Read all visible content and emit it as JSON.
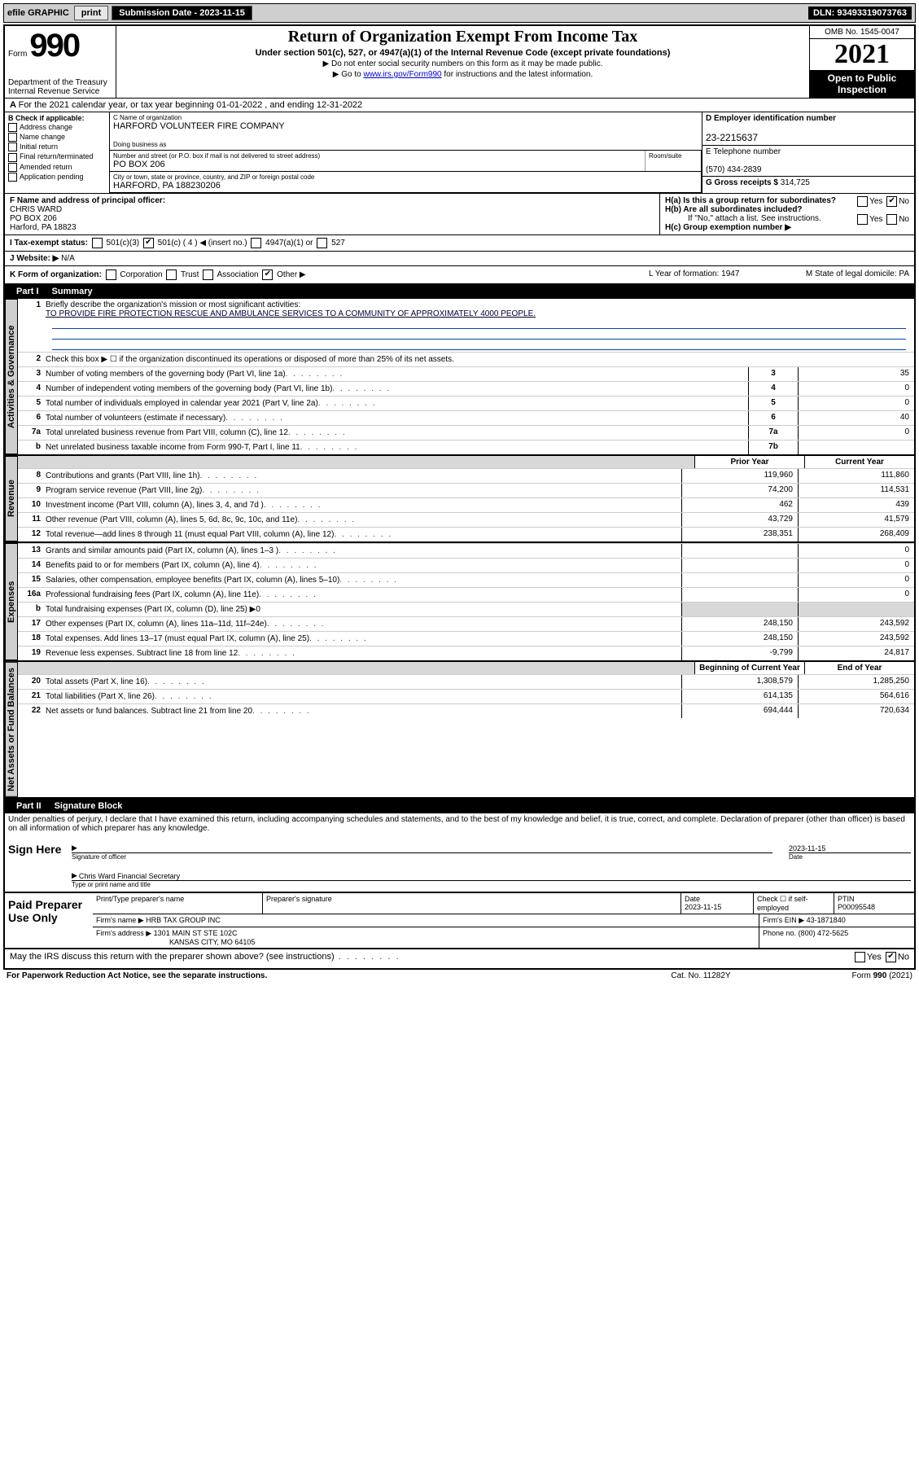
{
  "topbar": {
    "efile_label": "efile GRAPHIC",
    "print_btn": "print",
    "submission_label": "Submission Date - 2023-11-15",
    "dln": "DLN: 93493319073763"
  },
  "header": {
    "form_word": "Form",
    "form_no": "990",
    "title": "Return of Organization Exempt From Income Tax",
    "subtitle": "Under section 501(c), 527, or 4947(a)(1) of the Internal Revenue Code (except private foundations)",
    "note1": "▶ Do not enter social security numbers on this form as it may be made public.",
    "note2_pre": "▶ Go to ",
    "note2_link": "www.irs.gov/Form990",
    "note2_post": " for instructions and the latest information.",
    "dept": "Department of the Treasury\nInternal Revenue Service",
    "omb": "OMB No. 1545-0047",
    "year": "2021",
    "open": "Open to Public Inspection"
  },
  "periodA": "For the 2021 calendar year, or tax year beginning 01-01-2022  , and ending 12-31-2022",
  "colB": {
    "head": "B Check if applicable:",
    "opts": [
      "Address change",
      "Name change",
      "Initial return",
      "Final return/terminated",
      "Amended return",
      "Application pending"
    ]
  },
  "boxC": {
    "label": "C Name of organization",
    "val": "HARFORD VOLUNTEER FIRE COMPANY",
    "dba_label": "Doing business as"
  },
  "addr": {
    "label": "Number and street (or P.O. box if mail is not delivered to street address)",
    "val": "PO BOX 206",
    "suite_label": "Room/suite",
    "city_label": "City or town, state or province, country, and ZIP or foreign postal code",
    "city_val": "HARFORD, PA  188230206"
  },
  "boxD": {
    "label": "D Employer identification number",
    "val": "23-2215637"
  },
  "boxE": {
    "label": "E Telephone number",
    "val": "(570) 434-2839"
  },
  "boxG": {
    "label": "G Gross receipts $",
    "val": "314,725"
  },
  "boxF": {
    "label": "F  Name and address of principal officer:",
    "name": "CHRIS WARD",
    "l1": "PO BOX 206",
    "l2": "Harford, PA  18823"
  },
  "boxH": {
    "a": "H(a)  Is this a group return for subordinates?",
    "b": "H(b)  Are all subordinates included?",
    "b_note": "If \"No,\" attach a list. See instructions.",
    "c": "H(c)  Group exemption number ▶",
    "yes": "Yes",
    "no": "No"
  },
  "rowI": {
    "label": "I  Tax-exempt status:",
    "insert": "501(c) ( 4 ) ◀ (insert no.)"
  },
  "rowJ": {
    "label": "J  Website: ▶",
    "val": "N/A"
  },
  "rowK": {
    "label": "K Form of organization:",
    "opts": [
      "Corporation",
      "Trust",
      "Association",
      "Other ▶"
    ],
    "L": "L Year of formation: 1947",
    "M": "M State of legal domicile: PA"
  },
  "part1": {
    "num": "Part I",
    "title": "Summary",
    "l1": "Briefly describe the organization's mission or most significant activities:",
    "l1v": "TO PROVIDE FIRE PROTECTION RESCUE AND AMBULANCE SERVICES TO A COMMUNITY OF APPROXIMATELY 4000 PEOPLE.",
    "l2": "Check this box ▶ ☐  if the organization discontinued its operations or disposed of more than 25% of its net assets.",
    "rows_gov": [
      {
        "n": "3",
        "d": "Number of voting members of the governing body (Part VI, line 1a)",
        "c": "3",
        "v": "35"
      },
      {
        "n": "4",
        "d": "Number of independent voting members of the governing body (Part VI, line 1b)",
        "c": "4",
        "v": "0"
      },
      {
        "n": "5",
        "d": "Total number of individuals employed in calendar year 2021 (Part V, line 2a)",
        "c": "5",
        "v": "0"
      },
      {
        "n": "6",
        "d": "Total number of volunteers (estimate if necessary)",
        "c": "6",
        "v": "40"
      },
      {
        "n": "7a",
        "d": "Total unrelated business revenue from Part VIII, column (C), line 12",
        "c": "7a",
        "v": "0"
      },
      {
        "n": "b",
        "d": "Net unrelated business taxable income from Form 990-T, Part I, line 11",
        "c": "7b",
        "v": ""
      }
    ],
    "col_prior": "Prior Year",
    "col_current": "Current Year",
    "rows_rev": [
      {
        "n": "8",
        "d": "Contributions and grants (Part VIII, line 1h)",
        "p": "119,960",
        "c": "111,860"
      },
      {
        "n": "9",
        "d": "Program service revenue (Part VIII, line 2g)",
        "p": "74,200",
        "c": "114,531"
      },
      {
        "n": "10",
        "d": "Investment income (Part VIII, column (A), lines 3, 4, and 7d )",
        "p": "462",
        "c": "439"
      },
      {
        "n": "11",
        "d": "Other revenue (Part VIII, column (A), lines 5, 6d, 8c, 9c, 10c, and 11e)",
        "p": "43,729",
        "c": "41,579"
      },
      {
        "n": "12",
        "d": "Total revenue—add lines 8 through 11 (must equal Part VIII, column (A), line 12)",
        "p": "238,351",
        "c": "268,409"
      }
    ],
    "rows_exp": [
      {
        "n": "13",
        "d": "Grants and similar amounts paid (Part IX, column (A), lines 1–3 )",
        "p": "",
        "c": "0"
      },
      {
        "n": "14",
        "d": "Benefits paid to or for members (Part IX, column (A), line 4)",
        "p": "",
        "c": "0"
      },
      {
        "n": "15",
        "d": "Salaries, other compensation, employee benefits (Part IX, column (A), lines 5–10)",
        "p": "",
        "c": "0"
      },
      {
        "n": "16a",
        "d": "Professional fundraising fees (Part IX, column (A), line 11e)",
        "p": "",
        "c": "0"
      },
      {
        "n": "b",
        "d": "Total fundraising expenses (Part IX, column (D), line 25) ▶0",
        "grey": true
      },
      {
        "n": "17",
        "d": "Other expenses (Part IX, column (A), lines 11a–11d, 11f–24e)",
        "p": "248,150",
        "c": "243,592"
      },
      {
        "n": "18",
        "d": "Total expenses. Add lines 13–17 (must equal Part IX, column (A), line 25)",
        "p": "248,150",
        "c": "243,592"
      },
      {
        "n": "19",
        "d": "Revenue less expenses. Subtract line 18 from line 12",
        "p": "-9,799",
        "c": "24,817"
      }
    ],
    "col_begin": "Beginning of Current Year",
    "col_end": "End of Year",
    "rows_net": [
      {
        "n": "20",
        "d": "Total assets (Part X, line 16)",
        "p": "1,308,579",
        "c": "1,285,250"
      },
      {
        "n": "21",
        "d": "Total liabilities (Part X, line 26)",
        "p": "614,135",
        "c": "564,616"
      },
      {
        "n": "22",
        "d": "Net assets or fund balances. Subtract line 21 from line 20",
        "p": "694,444",
        "c": "720,634"
      }
    ],
    "tab_gov": "Activities & Governance",
    "tab_rev": "Revenue",
    "tab_exp": "Expenses",
    "tab_net": "Net Assets or Fund Balances"
  },
  "part2": {
    "num": "Part II",
    "title": "Signature Block",
    "declare": "Under penalties of perjury, I declare that I have examined this return, including accompanying schedules and statements, and to the best of my knowledge and belief, it is true, correct, and complete. Declaration of preparer (other than officer) is based on all information of which preparer has any knowledge.",
    "sign_here": "Sign Here",
    "sig_officer": "Signature of officer",
    "date": "Date",
    "date_val": "2023-11-15",
    "name_title": "Chris Ward  Financial Secretary",
    "type_name": "Type or print name and title",
    "paid": "Paid Preparer Use Only",
    "pt_head": [
      "Print/Type preparer's name",
      "Preparer's signature",
      "Date",
      "",
      "PTIN"
    ],
    "pt_date": "2023-11-15",
    "pt_check": "Check ☐ if self-employed",
    "ptin": "P00095548",
    "firm_name_l": "Firm's name    ▶",
    "firm_name": "HRB TAX GROUP INC",
    "firm_ein_l": "Firm's EIN ▶",
    "firm_ein": "43-1871840",
    "firm_addr_l": "Firm's address ▶",
    "firm_addr1": "1301 MAIN ST STE 102C",
    "firm_addr2": "KANSAS CITY, MO  64105",
    "phone_l": "Phone no.",
    "phone": "(800) 472-5625",
    "discuss": "May the IRS discuss this return with the preparer shown above? (see instructions)"
  },
  "footer": {
    "left": "For Paperwork Reduction Act Notice, see the separate instructions.",
    "mid": "Cat. No. 11282Y",
    "right": "Form 990 (2021)"
  }
}
